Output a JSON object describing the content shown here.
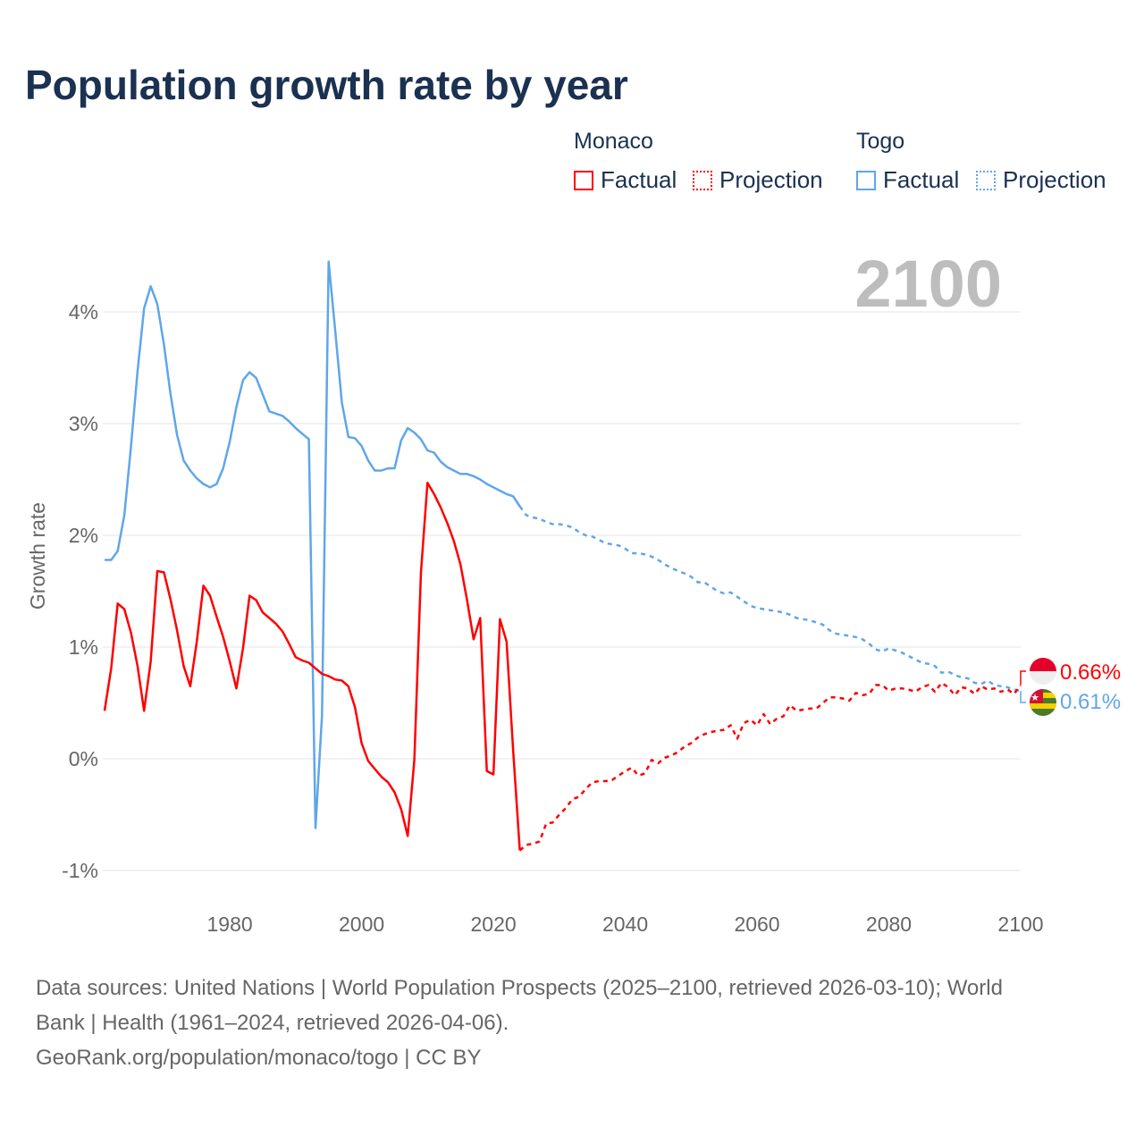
{
  "title": "Population growth rate by year",
  "legend": {
    "groups": [
      {
        "country": "Monaco",
        "factual": "Factual",
        "projection": "Projection",
        "color": "#ff0000"
      },
      {
        "country": "Togo",
        "factual": "Factual",
        "projection": "Projection",
        "color": "#5fa6ea"
      }
    ]
  },
  "year_label": "2100",
  "end_labels": {
    "monaco": "0.66%",
    "togo": "0.61%"
  },
  "footer": {
    "line1": "Data sources: United Nations | World Population Prospects (2025–2100, retrieved 2026-03-10); World",
    "line2": "Bank | Health (1961–2024, retrieved 2026-04-06).",
    "line3": "GeoRank.org/population/monaco/togo | CC BY"
  },
  "chart_data": {
    "type": "line",
    "title": "Population growth rate by year",
    "xlabel": "",
    "ylabel": "Growth rate",
    "xlim": [
      1961,
      2100
    ],
    "ylim": [
      -1,
      4.5
    ],
    "x_ticks": [
      1980,
      2000,
      2020,
      2040,
      2060,
      2080,
      2100
    ],
    "x_tick_labels": [
      "1980",
      "2000",
      "2020",
      "2040",
      "2060",
      "2080",
      "2100"
    ],
    "y_ticks": [
      -1,
      0,
      1,
      2,
      3,
      4
    ],
    "y_tick_labels": [
      "-1%",
      "0%",
      "1%",
      "2%",
      "3%",
      "4%"
    ],
    "grid": true,
    "legend_position": "top-right",
    "series": [
      {
        "name": "Togo Factual",
        "color": "#5fa6ea",
        "style": "solid",
        "x_start": 1961,
        "values": [
          1.78,
          1.78,
          1.86,
          2.18,
          2.79,
          3.47,
          4.03,
          4.23,
          4.07,
          3.71,
          3.27,
          2.9,
          2.67,
          2.58,
          2.51,
          2.46,
          2.43,
          2.46,
          2.6,
          2.84,
          3.15,
          3.39,
          3.46,
          3.41,
          3.26,
          3.11,
          3.09,
          3.07,
          3.02,
          2.96,
          2.91,
          2.86,
          -0.62,
          0.39,
          4.45,
          3.83,
          3.19,
          2.88,
          2.87,
          2.8,
          2.67,
          2.58,
          2.58,
          2.6,
          2.6,
          2.85,
          2.96,
          2.92,
          2.86,
          2.76,
          2.74,
          2.66,
          2.61,
          2.58,
          2.55,
          2.55,
          2.53,
          2.5,
          2.46,
          2.43,
          2.4,
          2.37,
          2.35,
          2.26
        ]
      },
      {
        "name": "Togo Projection",
        "color": "#5fa6ea",
        "style": "dotted",
        "x_start": 2024,
        "values": [
          2.26,
          2.18,
          2.16,
          2.15,
          2.12,
          2.1,
          2.1,
          2.09,
          2.07,
          2.03,
          2.0,
          1.99,
          1.96,
          1.93,
          1.92,
          1.91,
          1.88,
          1.84,
          1.84,
          1.83,
          1.81,
          1.78,
          1.74,
          1.71,
          1.68,
          1.66,
          1.63,
          1.58,
          1.58,
          1.54,
          1.5,
          1.48,
          1.49,
          1.45,
          1.41,
          1.37,
          1.35,
          1.34,
          1.33,
          1.32,
          1.31,
          1.29,
          1.26,
          1.25,
          1.24,
          1.22,
          1.2,
          1.15,
          1.12,
          1.11,
          1.1,
          1.09,
          1.07,
          1.03,
          0.98,
          0.96,
          0.99,
          0.97,
          0.95,
          0.92,
          0.89,
          0.86,
          0.85,
          0.83,
          0.77,
          0.78,
          0.75,
          0.73,
          0.72,
          0.68,
          0.67,
          0.7,
          0.66,
          0.65,
          0.64,
          0.62,
          0.61
        ]
      },
      {
        "name": "Monaco Factual",
        "color": "#ff0000",
        "style": "solid",
        "x_start": 1961,
        "values": [
          0.43,
          0.81,
          1.39,
          1.34,
          1.13,
          0.83,
          0.43,
          0.87,
          1.68,
          1.67,
          1.43,
          1.15,
          0.83,
          0.65,
          1.05,
          1.55,
          1.46,
          1.27,
          1.09,
          0.87,
          0.63,
          0.99,
          1.46,
          1.42,
          1.31,
          1.26,
          1.21,
          1.14,
          1.03,
          0.91,
          0.88,
          0.86,
          0.81,
          0.76,
          0.74,
          0.71,
          0.7,
          0.65,
          0.46,
          0.14,
          -0.02,
          -0.09,
          -0.16,
          -0.21,
          -0.3,
          -0.45,
          -0.69,
          -0.01,
          1.67,
          2.47,
          2.37,
          2.25,
          2.11,
          1.95,
          1.74,
          1.42,
          1.07,
          1.26,
          -0.11,
          -0.14,
          1.25,
          1.05,
          0.07,
          -0.82
        ]
      },
      {
        "name": "Monaco Projection",
        "color": "#ff0000",
        "style": "dotted",
        "x_start": 2024,
        "values": [
          -0.82,
          -0.77,
          -0.76,
          -0.74,
          -0.58,
          -0.57,
          -0.5,
          -0.44,
          -0.36,
          -0.34,
          -0.27,
          -0.21,
          -0.2,
          -0.2,
          -0.19,
          -0.15,
          -0.11,
          -0.08,
          -0.15,
          -0.13,
          -0.01,
          -0.04,
          0.01,
          0.03,
          0.06,
          0.11,
          0.14,
          0.19,
          0.22,
          0.24,
          0.25,
          0.26,
          0.3,
          0.18,
          0.32,
          0.35,
          0.3,
          0.4,
          0.31,
          0.36,
          0.38,
          0.48,
          0.43,
          0.44,
          0.45,
          0.45,
          0.5,
          0.55,
          0.55,
          0.54,
          0.52,
          0.59,
          0.57,
          0.58,
          0.66,
          0.66,
          0.61,
          0.63,
          0.63,
          0.62,
          0.6,
          0.64,
          0.66,
          0.6,
          0.68,
          0.64,
          0.57,
          0.64,
          0.63,
          0.58,
          0.65,
          0.62,
          0.63,
          0.6,
          0.62,
          0.58,
          0.66
        ]
      }
    ]
  }
}
